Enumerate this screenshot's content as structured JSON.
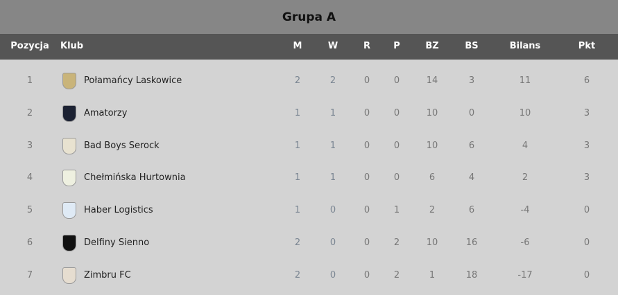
{
  "title": "Grupa A",
  "headers": [
    "Pozycja",
    "Klub",
    "M",
    "W",
    "R",
    "P",
    "BZ",
    "BS",
    "Bilans",
    "Pkt"
  ],
  "rows": [
    {
      "pos": "1",
      "club": "Połamańcy Laskowice",
      "logo_color": "#c9b47a",
      "vals": [
        "2",
        "2",
        "0",
        "0",
        "14",
        "3",
        "11",
        "6"
      ]
    },
    {
      "pos": "2",
      "club": "Amatorzy",
      "logo_color": "#1c2233",
      "vals": [
        "1",
        "1",
        "0",
        "0",
        "10",
        "0",
        "10",
        "3"
      ]
    },
    {
      "pos": "3",
      "club": "Bad Boys Serock",
      "logo_color": "#e8e2d0",
      "vals": [
        "1",
        "1",
        "0",
        "0",
        "10",
        "6",
        "4",
        "3"
      ]
    },
    {
      "pos": "4",
      "club": "Chełmińska Hurtownia",
      "logo_color": "#eef0e0",
      "vals": [
        "1",
        "1",
        "0",
        "0",
        "6",
        "4",
        "2",
        "3"
      ]
    },
    {
      "pos": "5",
      "club": "Haber Logistics",
      "logo_color": "#dfeaf5",
      "vals": [
        "1",
        "0",
        "0",
        "1",
        "2",
        "6",
        "-4",
        "0"
      ]
    },
    {
      "pos": "6",
      "club": "Delfiny Sienno",
      "logo_color": "#111111",
      "vals": [
        "2",
        "0",
        "0",
        "2",
        "10",
        "16",
        "-6",
        "0"
      ]
    },
    {
      "pos": "7",
      "club": "Zimbru FC",
      "logo_color": "#e6ddd0",
      "vals": [
        "2",
        "0",
        "0",
        "2",
        "1",
        "18",
        "-17",
        "0"
      ]
    }
  ]
}
